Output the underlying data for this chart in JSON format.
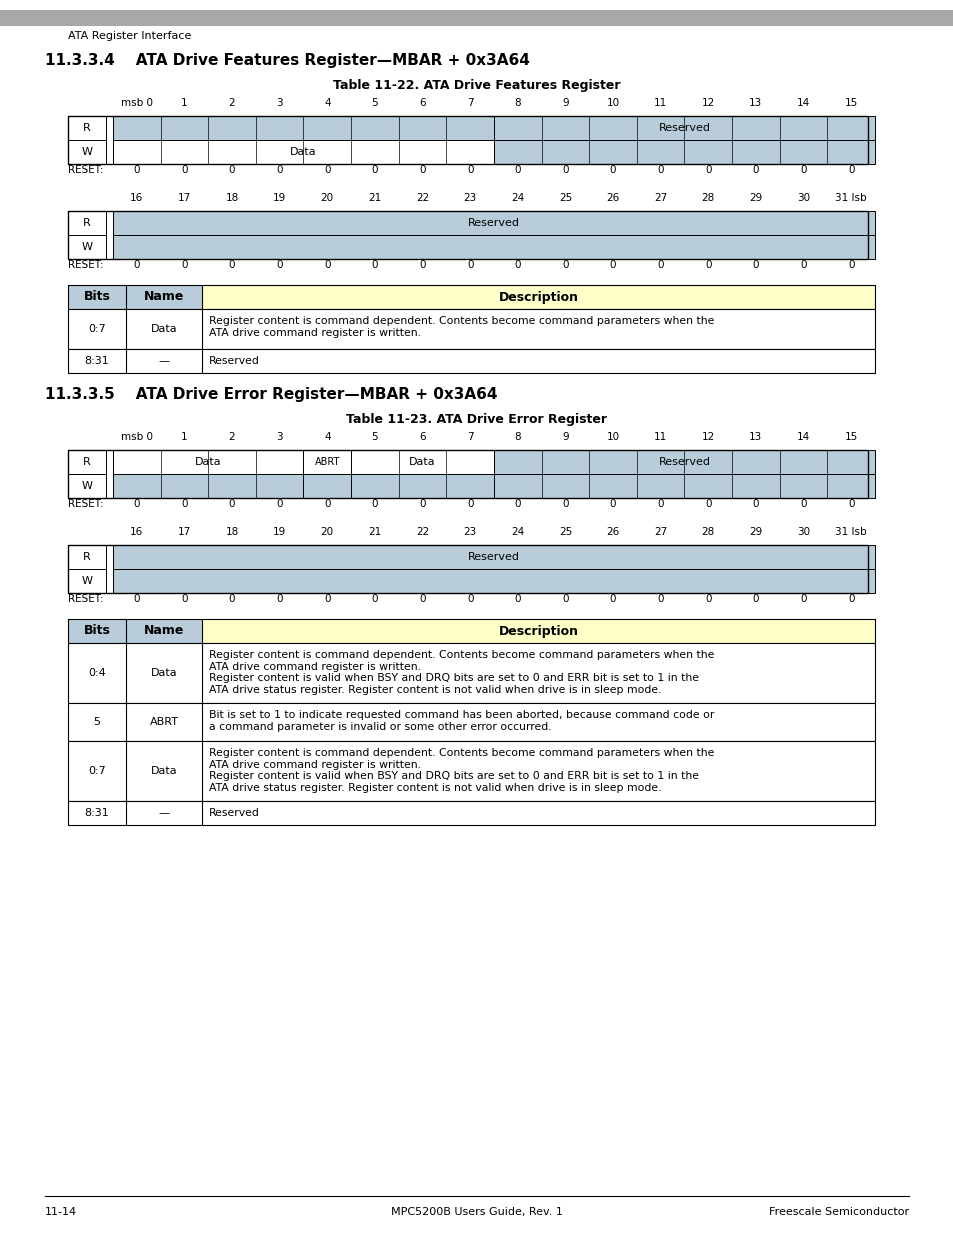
{
  "page_header": "ATA Register Interface",
  "section1_title": "11.3.3.4    ATA Drive Features Register—MBAR + 0x3A64",
  "table1_title": "Table 11-22. ATA Drive Features Register",
  "section2_title": "11.3.3.5    ATA Drive Error Register—MBAR + 0x3A64",
  "table2_title": "Table 11-23. ATA Drive Error Register",
  "footer_center": "MPC5200B Users Guide, Rev. 1",
  "footer_left": "11-14",
  "footer_right": "Freescale Semiconductor",
  "light_blue": "#b8cdd9",
  "light_yellow": "#ffffc8",
  "white": "#ffffff",
  "bit_labels_0_15": [
    "msb 0",
    "1",
    "2",
    "3",
    "4",
    "5",
    "6",
    "7",
    "8",
    "9",
    "10",
    "11",
    "12",
    "13",
    "14",
    "15"
  ],
  "bit_labels_16_31": [
    "16",
    "17",
    "18",
    "19",
    "20",
    "21",
    "22",
    "23",
    "24",
    "25",
    "26",
    "27",
    "28",
    "29",
    "30",
    "31 lsb"
  ],
  "reset_values": [
    "0",
    "0",
    "0",
    "0",
    "0",
    "0",
    "0",
    "0",
    "0",
    "0",
    "0",
    "0",
    "0",
    "0",
    "0",
    "0"
  ]
}
